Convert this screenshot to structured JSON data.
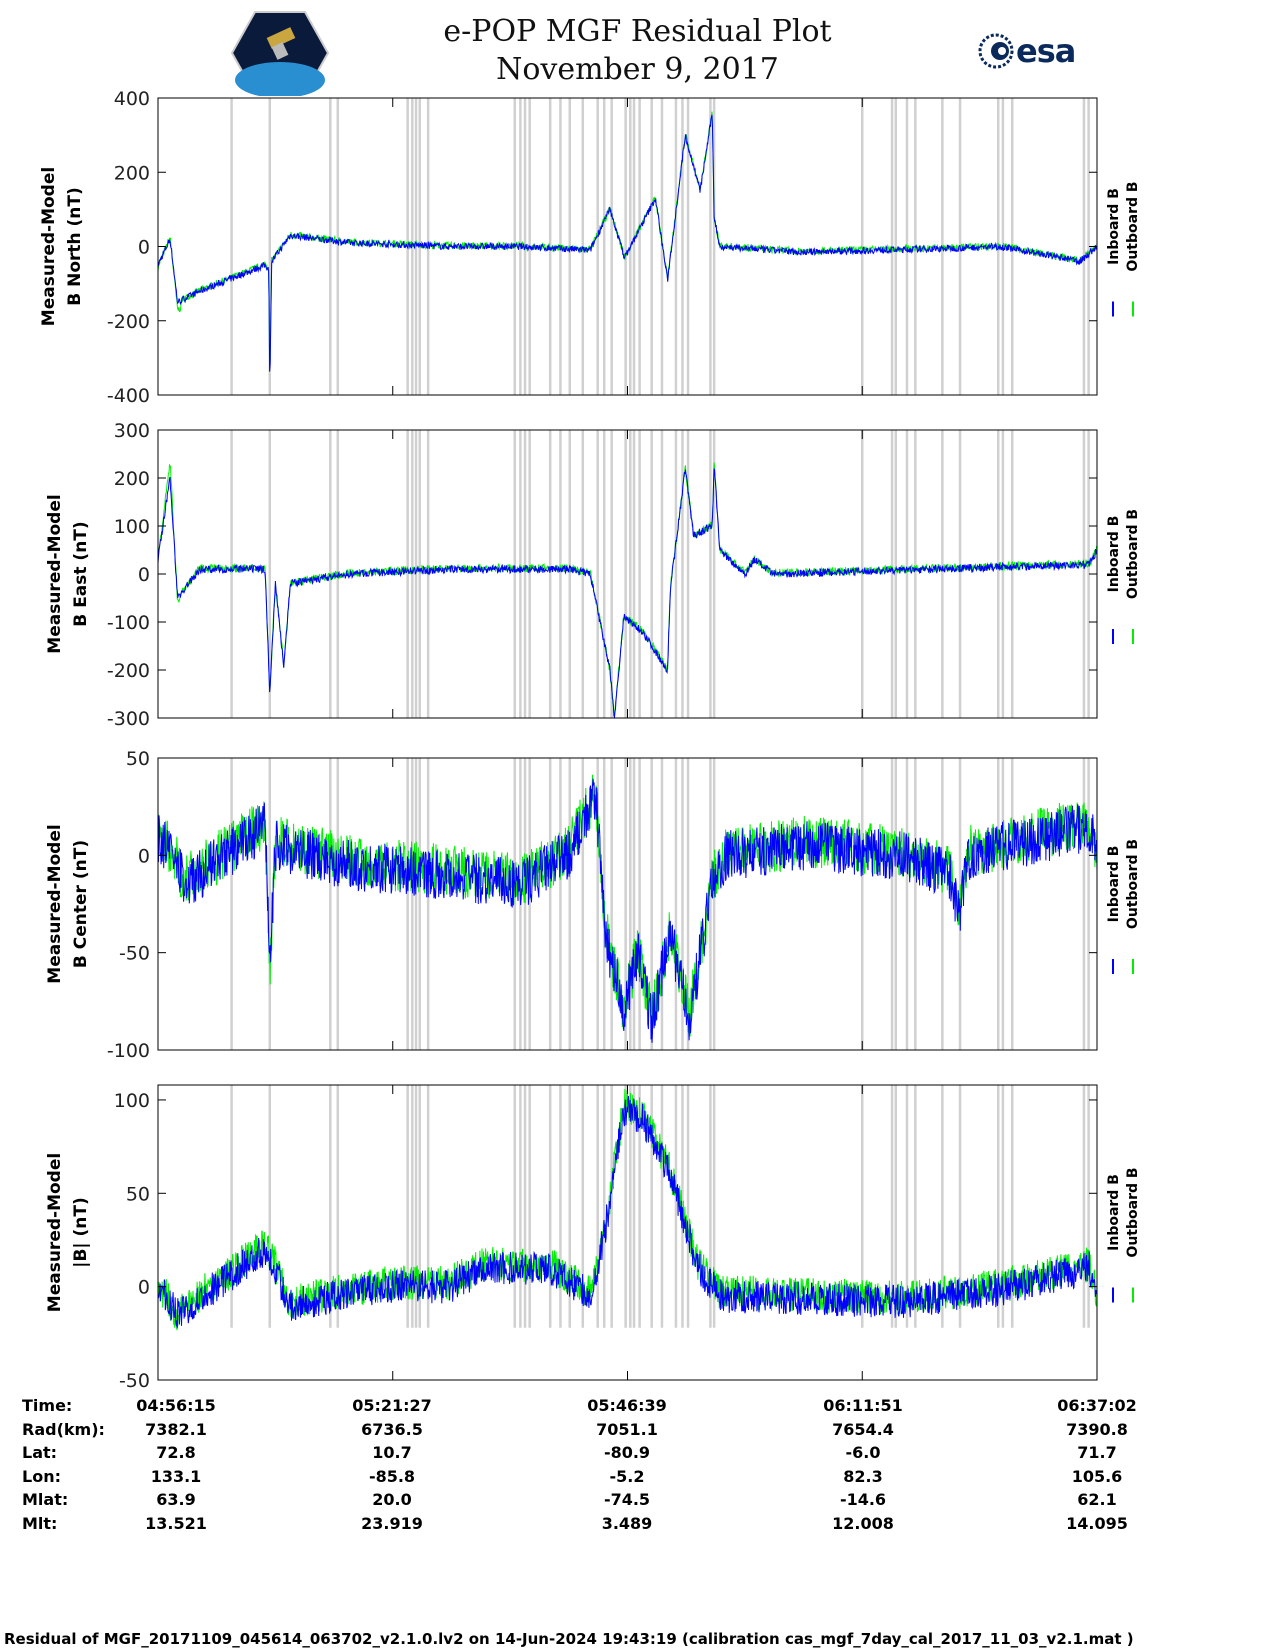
{
  "header": {
    "title": "e-POP MGF Residual Plot",
    "date": "November 9, 2017"
  },
  "logos": {
    "left": "CASSIOPE",
    "right": "esa"
  },
  "legend": {
    "inboard": "Inboard B",
    "outboard": "Outboard B",
    "inboard_color": "#0000ff",
    "outboard_color": "#00ee00"
  },
  "chart_data": [
    {
      "type": "line",
      "ylabel1": "Measured-Model",
      "ylabel2": "B North (nT)",
      "ylim": [
        -400,
        400
      ],
      "yticks": [
        "400",
        "200",
        "0",
        "-200",
        "-400"
      ],
      "ytick_values": [
        400,
        200,
        0,
        -200,
        -400
      ],
      "noise": 9,
      "keypoints": [
        [
          0,
          -50
        ],
        [
          1.3,
          20
        ],
        [
          2.1,
          -150
        ],
        [
          4.5,
          -120
        ],
        [
          11.5,
          -50
        ],
        [
          11.9,
          -60
        ],
        [
          12.0,
          -380
        ],
        [
          12.2,
          -40
        ],
        [
          14.2,
          30
        ],
        [
          20.6,
          10
        ],
        [
          31.3,
          0
        ],
        [
          38.9,
          0
        ],
        [
          46.4,
          -10
        ],
        [
          48.5,
          100
        ],
        [
          50.1,
          -30
        ],
        [
          53.4,
          130
        ],
        [
          54.7,
          -90
        ],
        [
          56.6,
          300
        ],
        [
          58.2,
          150
        ],
        [
          59.5,
          360
        ],
        [
          59.7,
          80
        ],
        [
          60.3,
          0
        ],
        [
          68.9,
          -15
        ],
        [
          85,
          -5
        ],
        [
          90.4,
          0
        ],
        [
          99,
          -40
        ],
        [
          100.8,
          0
        ]
      ]
    },
    {
      "type": "line",
      "ylabel1": "Measured-Model",
      "ylabel2": "B East (nT)",
      "ylim": [
        -300,
        300
      ],
      "yticks": [
        "300",
        "200",
        "100",
        "0",
        "-100",
        "-200",
        "-300"
      ],
      "ytick_values": [
        300,
        200,
        100,
        0,
        -100,
        -200,
        -300
      ],
      "noise": 8,
      "keypoints": [
        [
          0,
          30
        ],
        [
          1.3,
          200
        ],
        [
          2.1,
          -50
        ],
        [
          4.5,
          10
        ],
        [
          11.5,
          10
        ],
        [
          12.0,
          -250
        ],
        [
          12.6,
          -20
        ],
        [
          13.5,
          -190
        ],
        [
          14.2,
          -20
        ],
        [
          20.6,
          0
        ],
        [
          31.3,
          10
        ],
        [
          44,
          10
        ],
        [
          46.4,
          0
        ],
        [
          48.5,
          -200
        ],
        [
          49,
          -300
        ],
        [
          50,
          -90
        ],
        [
          52,
          -120
        ],
        [
          54.7,
          -200
        ],
        [
          55,
          -30
        ],
        [
          56.6,
          220
        ],
        [
          57.5,
          80
        ],
        [
          59.5,
          100
        ],
        [
          59.7,
          230
        ],
        [
          60.3,
          50
        ],
        [
          63,
          0
        ],
        [
          64,
          30
        ],
        [
          66,
          0
        ],
        [
          100,
          20
        ],
        [
          100.8,
          50
        ]
      ]
    },
    {
      "type": "line",
      "ylabel1": "Measured-Model",
      "ylabel2": "B Center (nT)",
      "ylim": [
        -100,
        50
      ],
      "yticks": [
        "50",
        "0",
        "-50",
        "-100"
      ],
      "ytick_values": [
        50,
        0,
        -50,
        -100
      ],
      "noise": 13,
      "keypoints": [
        [
          0,
          10
        ],
        [
          2,
          -5
        ],
        [
          3,
          -15
        ],
        [
          11.5,
          15
        ],
        [
          12,
          -60
        ],
        [
          12.6,
          5
        ],
        [
          20.6,
          -5
        ],
        [
          31.3,
          -10
        ],
        [
          38.9,
          -15
        ],
        [
          44,
          0
        ],
        [
          47,
          30
        ],
        [
          48,
          -40
        ],
        [
          50,
          -80
        ],
        [
          51.5,
          -50
        ],
        [
          53,
          -85
        ],
        [
          55,
          -40
        ],
        [
          57,
          -85
        ],
        [
          59.5,
          -15
        ],
        [
          61,
          0
        ],
        [
          70,
          5
        ],
        [
          80,
          0
        ],
        [
          85,
          -10
        ],
        [
          86,
          -30
        ],
        [
          87,
          0
        ],
        [
          100,
          15
        ],
        [
          100.8,
          0
        ]
      ]
    },
    {
      "type": "line",
      "ylabel1": "Measured-Model",
      "ylabel2": "|B| (nT)",
      "ylim": [
        -50,
        108
      ],
      "yticks": [
        "100",
        "50",
        "0",
        "-50"
      ],
      "ytick_values": [
        100,
        50,
        0,
        -50
      ],
      "noise": 9,
      "keypoints": [
        [
          0,
          0
        ],
        [
          2.1,
          -15
        ],
        [
          11.5,
          20
        ],
        [
          12.6,
          10
        ],
        [
          14,
          -10
        ],
        [
          25,
          0
        ],
        [
          31.3,
          0
        ],
        [
          35,
          10
        ],
        [
          42,
          10
        ],
        [
          46.4,
          -5
        ],
        [
          48,
          30
        ],
        [
          50,
          95
        ],
        [
          52,
          90
        ],
        [
          55,
          60
        ],
        [
          58,
          10
        ],
        [
          60.3,
          -5
        ],
        [
          80,
          -8
        ],
        [
          90,
          -2
        ],
        [
          100,
          10
        ],
        [
          100.8,
          -5
        ]
      ]
    }
  ],
  "x_axis": {
    "range_minutes": [
      0,
      100.8
    ],
    "tick_minutes": [
      0,
      25.2,
      50.4,
      75.6,
      100.8
    ]
  },
  "gap_markers_minutes": [
    7.9,
    12.0,
    18.5,
    19.3,
    26.8,
    27.3,
    27.7,
    28.1,
    29.0,
    38.3,
    38.9,
    39.4,
    39.9,
    42.1,
    43.2,
    44.2,
    45.6,
    47.2,
    47.9,
    48.7,
    50.2,
    50.7,
    51.1,
    51.7,
    53.0,
    54.1,
    55.6,
    56.3,
    56.9,
    59.3,
    59.7,
    75.6,
    78.8,
    79.2,
    80.4,
    81.3,
    84.2,
    86.1,
    90.2,
    90.7,
    91.7,
    99.4,
    99.9
  ],
  "table": {
    "labels": [
      "Time:",
      "Rad(km):",
      "Lat:",
      "Lon:",
      "Mlat:",
      "Mlt:"
    ],
    "columns": [
      [
        "04:56:15",
        "7382.1",
        "72.8",
        "133.1",
        "63.9",
        "13.521"
      ],
      [
        "05:21:27",
        "6736.5",
        "10.7",
        "-85.8",
        "20.0",
        "23.919"
      ],
      [
        "05:46:39",
        "7051.1",
        "-80.9",
        "-5.2",
        "-74.5",
        "3.489"
      ],
      [
        "06:11:51",
        "7654.4",
        "-6.0",
        "82.3",
        "-14.6",
        "12.008"
      ],
      [
        "06:37:02",
        "7390.8",
        "71.7",
        "105.6",
        "62.1",
        "14.095"
      ]
    ]
  },
  "footer": "Residual of MGF_20171109_045614_063702_v2.1.0.lv2 on 14-Jun-2024 19:43:19 (calibration cas_mgf_7day_cal_2017_11_03_v2.1.mat )"
}
